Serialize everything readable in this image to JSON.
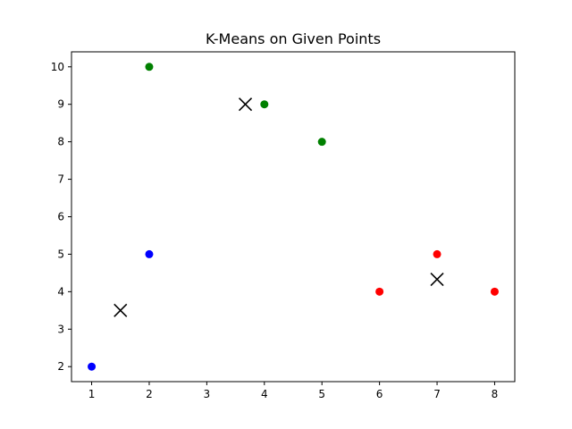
{
  "chart_data": {
    "type": "scatter",
    "title": "K-Means on Given Points",
    "xlabel": "",
    "ylabel": "",
    "xlim": [
      0.65,
      8.35
    ],
    "ylim": [
      1.6,
      10.4
    ],
    "xticks": [
      1,
      2,
      3,
      4,
      5,
      6,
      7,
      8
    ],
    "yticks": [
      2,
      3,
      4,
      5,
      6,
      7,
      8,
      9,
      10
    ],
    "grid": false,
    "legend": "none",
    "series": [
      {
        "color": "#0000ff",
        "marker": "circle",
        "points": [
          {
            "x": 1,
            "y": 2
          },
          {
            "x": 2,
            "y": 5
          }
        ]
      },
      {
        "color": "#008000",
        "marker": "circle",
        "points": [
          {
            "x": 2,
            "y": 10
          },
          {
            "x": 4,
            "y": 9
          },
          {
            "x": 5,
            "y": 8
          }
        ]
      },
      {
        "color": "#ff0000",
        "marker": "circle",
        "points": [
          {
            "x": 6,
            "y": 4
          },
          {
            "x": 7,
            "y": 5
          },
          {
            "x": 8,
            "y": 4
          }
        ]
      },
      {
        "color": "#000000",
        "marker": "x",
        "points": [
          {
            "x": 1.5,
            "y": 3.5
          },
          {
            "x": 3.67,
            "y": 9
          },
          {
            "x": 7,
            "y": 4.33
          }
        ]
      }
    ]
  }
}
